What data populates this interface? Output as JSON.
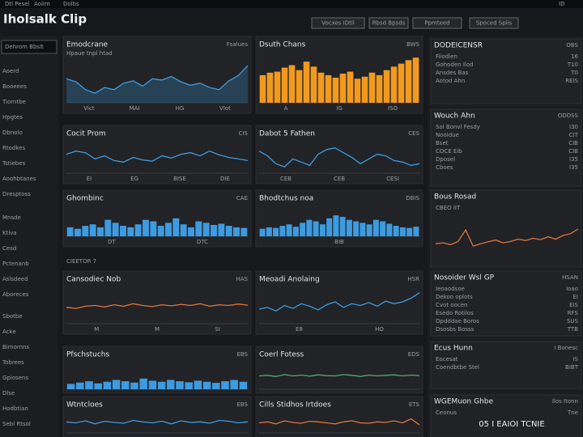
{
  "header": {
    "title": "Iholsalk Clip",
    "nav": [
      "Dtl Pesel",
      "Aoiim",
      "Dolbs"
    ],
    "buttons": [
      "Vocxes IDtil",
      "Rbsd Bpsds",
      "Ppmteed",
      "Spoced Spiis"
    ],
    "icons": "ID"
  },
  "sidebar": {
    "search": "Dehrom Bbslt",
    "items": [
      "Aoerd",
      "Booeees",
      "Tiorntbe",
      "Hpgtes",
      "Dbnolo",
      "Rtodkes",
      "Tstiebes",
      "Aoohbtanes",
      "Dresptoss",
      "Mnsde",
      "Ktiva",
      "Cesd",
      "Pctenanb",
      "Aslsdeed",
      "Aboreces",
      "Sbotbe",
      "Acke",
      "Bimornns",
      "Tobrees",
      "Gpiosens",
      "Dlse",
      "Hodbtian",
      "Sebi Rtsol"
    ]
  },
  "section_label": "CIEETOR 7",
  "panels": [
    {
      "title": "Emodcrane",
      "subtitle": "Hpaue tnpl htad",
      "corner": "Fsalues",
      "type": "area",
      "color": "#3d9be0",
      "x_labels": [
        "Vict",
        "MAI",
        "HG",
        "VIot"
      ],
      "values": [
        55,
        48,
        30,
        22,
        35,
        30,
        45,
        50,
        38,
        55,
        52,
        60,
        48,
        40,
        45,
        35,
        30,
        50,
        62,
        85
      ]
    },
    {
      "title": "Dsuth Chans",
      "corner": "BWS",
      "type": "bar",
      "color": "#f29a1e",
      "x_labels": [
        "A",
        "IG",
        "ISO"
      ],
      "values": [
        55,
        60,
        62,
        70,
        75,
        65,
        82,
        72,
        60,
        55,
        50,
        58,
        62,
        48,
        52,
        60,
        55,
        65,
        72,
        78,
        85,
        90
      ]
    },
    {
      "title": "Cocit Prom",
      "corner": "CIS",
      "type": "line",
      "color": "#3d9be0",
      "x_labels": [
        "EI",
        "EG",
        "BISE",
        "DIE"
      ],
      "values": [
        60,
        70,
        65,
        45,
        55,
        40,
        35,
        50,
        42,
        38,
        55,
        48,
        60,
        65,
        55,
        70,
        58,
        50,
        45,
        40
      ]
    },
    {
      "title": "Dabot 5 Fathen",
      "corner": "CES",
      "type": "line",
      "color": "#3d9be0",
      "x_labels": [
        "CEB",
        "CEB",
        "CESI"
      ],
      "values": [
        70,
        55,
        30,
        20,
        45,
        35,
        25,
        60,
        75,
        80,
        65,
        50,
        30,
        45,
        60,
        55,
        40,
        35,
        25,
        30
      ]
    },
    {
      "title": "Ghombinc",
      "corner": "CAE",
      "type": "bar",
      "color": "#3d9be0",
      "x_labels": [
        "DT",
        "DTC"
      ],
      "values": [
        30,
        25,
        35,
        40,
        30,
        55,
        45,
        35,
        30,
        40,
        55,
        50,
        35,
        45,
        60,
        40,
        30,
        50,
        45,
        38,
        42,
        35,
        30,
        28
      ]
    },
    {
      "title": "Bhodtchus noa",
      "corner": "DBIS",
      "type": "bar",
      "color": "#3d9be0",
      "x_labels": [
        "BIB"
      ],
      "values": [
        25,
        30,
        28,
        35,
        40,
        32,
        45,
        55,
        50,
        40,
        60,
        70,
        65,
        55,
        50,
        45,
        40,
        55,
        50,
        42,
        35,
        30,
        28,
        32
      ]
    },
    {
      "title": "Cansodiec Nob",
      "corner": "HAS",
      "type": "line",
      "color": "#e0743a",
      "x_labels": [
        "M",
        "M",
        "SI"
      ],
      "values": [
        45,
        42,
        48,
        50,
        46,
        52,
        48,
        55,
        50,
        47,
        52,
        49,
        53,
        50,
        55,
        48,
        52,
        50,
        54,
        51
      ]
    },
    {
      "title": "Meoadi Anolaing",
      "corner": "HSR",
      "type": "line",
      "color": "#3d9be0",
      "x_labels": [
        "E8",
        "HO"
      ],
      "values": [
        40,
        45,
        35,
        50,
        42,
        55,
        48,
        38,
        52,
        60,
        45,
        55,
        50,
        58,
        48,
        62,
        55,
        60,
        70,
        85
      ]
    },
    {
      "title": "Pfschstuchs",
      "corner": "EBS",
      "type": "bar",
      "color": "#3d9be0",
      "x_labels": [],
      "values": [
        20,
        25,
        30,
        22,
        28,
        35,
        30,
        25,
        40,
        32,
        28,
        35,
        30,
        26,
        32,
        28,
        24,
        30,
        35,
        28
      ]
    },
    {
      "title": "Coerl Fotess",
      "corner": "EDS",
      "type": "line",
      "color": "#4fae6a",
      "x_labels": [],
      "values": [
        50,
        52,
        48,
        55,
        50,
        53,
        49,
        54,
        51,
        50,
        55,
        52,
        48,
        53,
        50,
        52,
        54,
        50,
        53,
        51
      ]
    },
    {
      "title": "Wtntcloes",
      "corner": "EBS",
      "type": "line",
      "color": "#3d9be0",
      "x_labels": [],
      "values": [
        55,
        50,
        60,
        45,
        58,
        52,
        48,
        62,
        55,
        50,
        58,
        45,
        60,
        52,
        55,
        48,
        62,
        58,
        50,
        55
      ]
    },
    {
      "title": "Cills Stidhos Irtdoes",
      "corner": "ETS",
      "type": "line",
      "color": "#e0743a",
      "x_labels": [],
      "values": [
        50,
        55,
        45,
        60,
        52,
        48,
        58,
        55,
        50,
        45,
        55,
        60,
        50,
        48,
        55,
        52,
        60,
        50,
        70,
        40
      ]
    }
  ],
  "right_panel": {
    "sections": [
      {
        "title": "DODEICENSR",
        "corner": "OBS",
        "rows": [
          [
            "Fiiodien",
            "16"
          ],
          [
            "Gohoden Ilod",
            "T10"
          ],
          [
            "Ansdes Bas",
            "T0"
          ],
          [
            "Aotod Ahn",
            "REIS"
          ]
        ]
      },
      {
        "title": "Wouch Ahn",
        "corner": "ODDSS",
        "rows": [
          [
            "Sol Bonvl Fesdy",
            "I30"
          ],
          [
            "Nooidue",
            "CIT"
          ],
          [
            "Bset",
            "CIB"
          ],
          [
            "COCE Eib",
            "CIB"
          ],
          [
            "Dposel",
            "I35"
          ],
          [
            "Cboes",
            "I35"
          ]
        ]
      },
      {
        "title": "Bous Rosad",
        "corner": "",
        "rows": [
          [
            "CBEO IIT",
            ""
          ]
        ],
        "chart": {
          "color": "#e0743a",
          "values": [
            40,
            42,
            38,
            45,
            70,
            35,
            40,
            44,
            48,
            42,
            45,
            50,
            47,
            52,
            49,
            55,
            50,
            58,
            62,
            72
          ]
        }
      },
      {
        "title": "Nosoider Wsl GP",
        "corner": "HSAN",
        "rows": [
          [
            "Ieoaodsoe",
            "Ioao"
          ],
          [
            "Dekoo oplots",
            "EI"
          ],
          [
            "Cvot oocen",
            "EIS"
          ],
          [
            "Esedo Rotilos",
            "RFS"
          ],
          [
            "Opdddae Boros",
            "SUS"
          ],
          [
            "Dsosbs Bosss",
            "TTB"
          ]
        ]
      },
      {
        "title": "Ecus Hunn",
        "corner": "I Bonesc",
        "rows": [
          [
            "Eocesat",
            "IS"
          ],
          [
            "Coendbtbe Stel",
            "BIBT"
          ]
        ]
      },
      {
        "title": "WGEMuon Ghbe",
        "corner": "Ilos Itonn",
        "rows": [
          [
            "Ceonus",
            "Tne"
          ]
        ],
        "big": "05 I EAIOI TCNIE"
      }
    ]
  }
}
